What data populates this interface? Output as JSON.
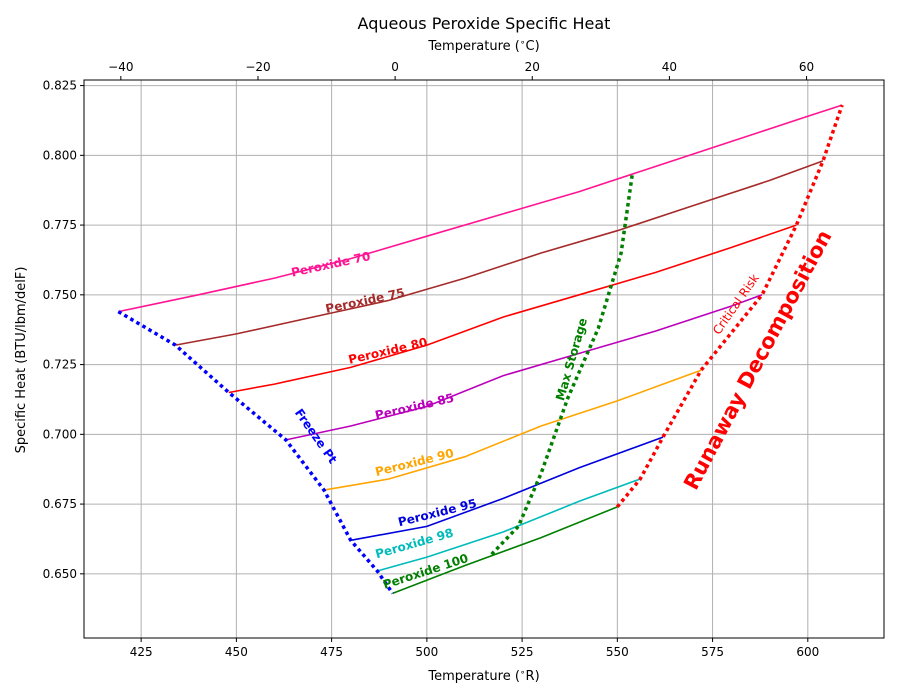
{
  "chart_data": {
    "type": "line",
    "title": "Aqueous Peroxide Specific Heat",
    "xlabel": "Temperature ($^\\circ$R)",
    "ylabel": "Specific Heat (BTU/lbm/delF)",
    "top_xlabel": "Temperature ($^\\circ$C)",
    "xlim": [
      410,
      620
    ],
    "ylim": [
      0.627,
      0.827
    ],
    "xticks": [
      425,
      450,
      475,
      500,
      525,
      550,
      575,
      600
    ],
    "xtick_labels": [
      "425",
      "450",
      "475",
      "500",
      "525",
      "550",
      "575",
      "600"
    ],
    "yticks": [
      0.65,
      0.675,
      0.7,
      0.725,
      0.75,
      0.775,
      0.8,
      0.825
    ],
    "ytick_labels": [
      "0.650",
      "0.675",
      "0.700",
      "0.725",
      "0.750",
      "0.775",
      "0.800",
      "0.825"
    ],
    "top_xticks": [
      -40,
      -20,
      0,
      20,
      40,
      60
    ],
    "top_xtick_labels": [
      "−40",
      "−20",
      "0",
      "20",
      "40",
      "60"
    ],
    "grid": true,
    "series": [
      {
        "name": "Peroxide 70",
        "color": "#ff1493",
        "x": [
          419,
          440,
          460,
          480,
          500,
          520,
          540,
          560,
          580,
          600,
          609
        ],
        "y": [
          0.744,
          0.75,
          0.756,
          0.763,
          0.771,
          0.779,
          0.787,
          0.796,
          0.805,
          0.814,
          0.818
        ]
      },
      {
        "name": "Peroxide 75",
        "color": "#a52a2a",
        "x": [
          434,
          450,
          470,
          490,
          510,
          530,
          550,
          570,
          590,
          604
        ],
        "y": [
          0.732,
          0.736,
          0.742,
          0.748,
          0.756,
          0.765,
          0.773,
          0.782,
          0.791,
          0.798
        ]
      },
      {
        "name": "Peroxide 80",
        "color": "#ff0000",
        "x": [
          448,
          460,
          480,
          500,
          520,
          540,
          560,
          580,
          597
        ],
        "y": [
          0.715,
          0.718,
          0.724,
          0.732,
          0.742,
          0.75,
          0.758,
          0.767,
          0.775
        ]
      },
      {
        "name": "Peroxide 85",
        "color": "#bb00bb",
        "x": [
          463,
          480,
          500,
          520,
          540,
          560,
          580,
          588
        ],
        "y": [
          0.698,
          0.703,
          0.71,
          0.721,
          0.729,
          0.737,
          0.746,
          0.75
        ]
      },
      {
        "name": "Peroxide 90",
        "color": "#ffa500",
        "x": [
          473,
          490,
          510,
          530,
          550,
          572
        ],
        "y": [
          0.68,
          0.684,
          0.692,
          0.703,
          0.712,
          0.723
        ]
      },
      {
        "name": "Peroxide 95",
        "color": "#0000dd",
        "x": [
          480,
          500,
          520,
          540,
          562
        ],
        "y": [
          0.662,
          0.667,
          0.677,
          0.688,
          0.699
        ]
      },
      {
        "name": "Peroxide 98",
        "color": "#00bbbb",
        "x": [
          487,
          500,
          520,
          540,
          556
        ],
        "y": [
          0.651,
          0.656,
          0.665,
          0.676,
          0.684
        ]
      },
      {
        "name": "Peroxide 100",
        "color": "#007f00",
        "x": [
          491,
          510,
          530,
          550
        ],
        "y": [
          0.643,
          0.653,
          0.663,
          0.674
        ]
      }
    ],
    "boundaries": [
      {
        "name": "Freeze Pt",
        "color": "#0000ff",
        "x": [
          419,
          434,
          448,
          463,
          473,
          480,
          487,
          491
        ],
        "y": [
          0.744,
          0.732,
          0.715,
          0.698,
          0.68,
          0.662,
          0.651,
          0.643
        ]
      },
      {
        "name": "Max Storage",
        "color": "#007f00",
        "x": [
          517,
          524,
          530,
          537,
          545,
          551,
          554
        ],
        "y": [
          0.657,
          0.667,
          0.686,
          0.713,
          0.738,
          0.765,
          0.794
        ]
      },
      {
        "name": "Critical Risk",
        "color": "#ff0000",
        "x": [
          550,
          556,
          562,
          572,
          588,
          597,
          604,
          609
        ],
        "y": [
          0.674,
          0.684,
          0.699,
          0.723,
          0.75,
          0.775,
          0.798,
          0.818
        ]
      }
    ],
    "annotations": {
      "critical_risk": "Critical Risk",
      "runaway": "Runaway Decomposition"
    }
  }
}
